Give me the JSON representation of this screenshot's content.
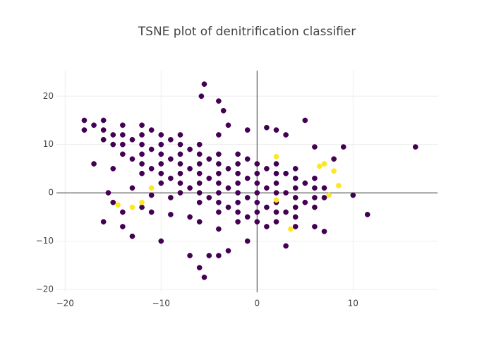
{
  "chart_data": {
    "type": "scatter",
    "title": "TSNE plot of denitrification classifier",
    "xlim": [
      -20.9,
      18.8
    ],
    "ylim": [
      -20.6,
      25.3
    ],
    "xticks": [
      {
        "value": -20,
        "label": "−20"
      },
      {
        "value": -10,
        "label": "−10"
      },
      0,
      10
    ],
    "yticks": [
      {
        "value": -20,
        "label": "−20"
      },
      {
        "value": -10,
        "label": "−10"
      },
      0,
      10,
      20
    ],
    "grid": true,
    "zeroline": true,
    "series": [
      {
        "color": "#440154",
        "x": [
          -18,
          -18,
          -16,
          -16,
          -16,
          -14,
          -14,
          -14,
          -14,
          -12,
          -12,
          -12,
          -12,
          -12,
          -12,
          -10,
          -10,
          -10,
          -10,
          -10,
          -10,
          -8,
          -8,
          -8,
          -8,
          -8,
          -8,
          -8,
          -6,
          -6,
          -6,
          -6,
          -6,
          -6,
          -6,
          -4,
          -4,
          -4,
          -4,
          -4,
          -4,
          -4,
          -2,
          -2,
          -2,
          -2,
          -2,
          -2,
          -2,
          -2,
          0,
          0,
          0,
          0,
          0,
          0,
          0,
          2,
          2,
          2,
          2,
          2,
          2,
          2,
          4,
          4,
          4,
          4,
          4,
          4,
          6,
          6,
          6,
          6,
          7,
          7,
          -17,
          -15,
          -15,
          -13,
          -13,
          -11,
          -11,
          -11,
          -9,
          -9,
          -9,
          -7,
          -7,
          -7,
          -5,
          -5,
          -5,
          -3,
          -3,
          -3,
          -1,
          -1,
          -1,
          -1,
          1,
          1,
          1,
          1,
          3,
          3,
          3,
          5,
          5,
          -5.5,
          -5.8,
          -4,
          -3.5,
          -3,
          -4,
          -1,
          1,
          2,
          3,
          5,
          6,
          9,
          8,
          16.5,
          10,
          11.5,
          -5,
          -6,
          -5.5,
          -4,
          -7,
          -3,
          3,
          -10,
          -13,
          -14,
          -15,
          -14,
          -12,
          -16,
          -15,
          -17,
          -11,
          -9,
          -7,
          -6,
          -4,
          -1,
          4,
          7,
          6,
          -13,
          -11,
          -9,
          -15.5
        ],
        "values": [
          13,
          15,
          11,
          13,
          15,
          8,
          10,
          12,
          14,
          4,
          6,
          8,
          10,
          12,
          14,
          2,
          4,
          6,
          8,
          10,
          12,
          0,
          2,
          4,
          6,
          8,
          10,
          12,
          -2,
          0,
          2,
          4,
          6,
          8,
          10,
          -4,
          -2,
          0,
          2,
          4,
          6,
          8,
          -6,
          -4,
          -2,
          0,
          2,
          4,
          6,
          8,
          -6,
          -4,
          -2,
          0,
          2,
          4,
          6,
          -6,
          -4,
          -2,
          0,
          2,
          4,
          6,
          -5,
          -3,
          -1,
          1,
          3,
          5,
          -3,
          -1,
          1,
          3,
          -1,
          1,
          14,
          12,
          10,
          7,
          11,
          5,
          9,
          13,
          3,
          7,
          11,
          1,
          5,
          9,
          -1,
          3,
          7,
          -3,
          1,
          5,
          -5,
          -1,
          3,
          7,
          -7,
          -3,
          1,
          5,
          -4,
          0,
          4,
          -2,
          2,
          22.5,
          20,
          19,
          17,
          14,
          12,
          13,
          13.5,
          13,
          12,
          15,
          9.5,
          9.5,
          7,
          9.5,
          -0.5,
          -4.5,
          -13,
          -15.5,
          -17.5,
          -13,
          -13,
          -12,
          -11,
          -10,
          -9,
          -7,
          -2,
          -4,
          -3,
          -6,
          5,
          6,
          -4,
          -4.5,
          -5,
          -6,
          -7.5,
          -10,
          -7,
          -8,
          -7,
          1,
          -0.5,
          -1,
          0
        ]
      },
      {
        "color": "#fde725",
        "x": [
          -14.5,
          -13,
          -12,
          -11,
          2,
          3.5,
          7,
          8,
          8.5,
          7.5,
          2,
          6.5
        ],
        "values": [
          -2.5,
          -3,
          -2,
          1,
          -1.5,
          -7.5,
          6,
          4.5,
          1.5,
          -0.5,
          7.5,
          5.5
        ]
      }
    ]
  }
}
